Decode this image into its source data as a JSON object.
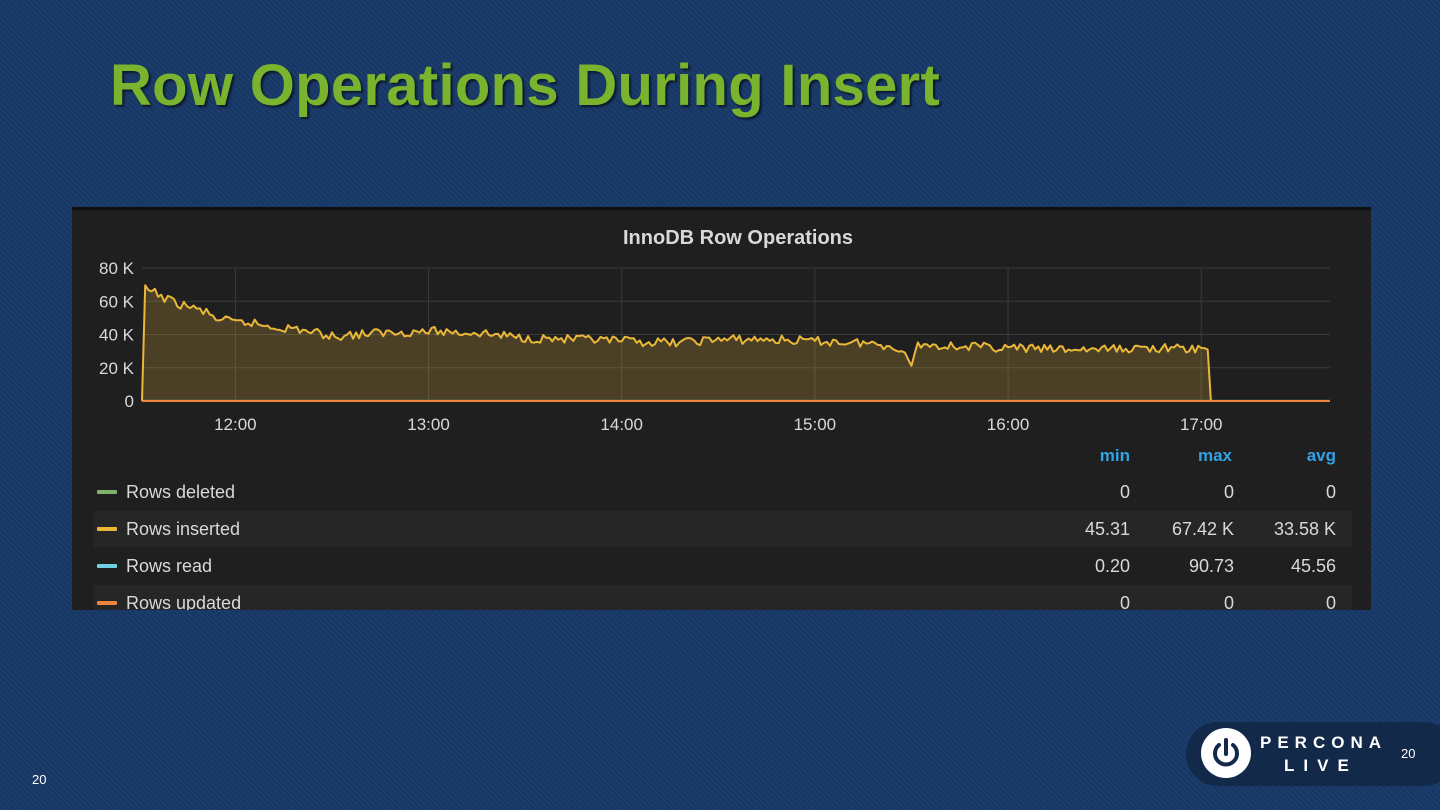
{
  "slide": {
    "title": "Row Operations During Insert",
    "page_number_left": "20",
    "page_number_right": "20",
    "brand_line1": "PERCONA",
    "brand_line2": "LIVE",
    "logo_icon": "power-icon"
  },
  "colors": {
    "title": "#7ab32e",
    "panel_bg": "#1f1f1f",
    "legend_header": "#33a2e5",
    "rows_deleted": "#7eb26d",
    "rows_inserted": "#eab839",
    "rows_read": "#6ed0e0",
    "rows_updated": "#ef843c"
  },
  "chart_data": {
    "type": "area",
    "title": "InnoDB Row Operations",
    "xlabel": "",
    "ylabel": "",
    "x_start": "11:31",
    "x_end": "17:40",
    "x_ticks": [
      "12:00",
      "13:00",
      "14:00",
      "15:00",
      "16:00",
      "17:00"
    ],
    "y_ticks": [
      "0",
      "20 K",
      "40 K",
      "60 K",
      "80 K"
    ],
    "y_tick_values": [
      0,
      20000,
      40000,
      60000,
      80000
    ],
    "ylim": [
      0,
      80000
    ],
    "grid": true,
    "legend_columns": [
      "min",
      "max",
      "avg"
    ],
    "series": [
      {
        "name": "Rows deleted",
        "color": "#7eb26d",
        "min": "0",
        "max": "0",
        "avg": "0",
        "points": [
          [
            "11:31",
            0
          ],
          [
            "17:40",
            0
          ]
        ]
      },
      {
        "name": "Rows inserted",
        "color": "#eab839",
        "min": "45.31",
        "max": "67.42 K",
        "avg": "33.58 K",
        "points": [
          [
            "11:31",
            0
          ],
          [
            "11:32",
            67000
          ],
          [
            "11:35",
            65000
          ],
          [
            "11:40",
            60000
          ],
          [
            "11:45",
            57000
          ],
          [
            "11:50",
            54000
          ],
          [
            "11:55",
            49000
          ],
          [
            "12:00",
            47000
          ],
          [
            "12:05",
            47000
          ],
          [
            "12:10",
            45000
          ],
          [
            "12:20",
            43000
          ],
          [
            "12:30",
            39000
          ],
          [
            "12:45",
            41000
          ],
          [
            "13:00",
            42000
          ],
          [
            "13:15",
            41000
          ],
          [
            "13:30",
            38000
          ],
          [
            "13:45",
            37000
          ],
          [
            "14:00",
            36000
          ],
          [
            "14:15",
            35000
          ],
          [
            "14:30",
            37000
          ],
          [
            "14:45",
            37000
          ],
          [
            "15:00",
            36000
          ],
          [
            "15:15",
            35000
          ],
          [
            "15:25",
            33000
          ],
          [
            "15:30",
            23000
          ],
          [
            "15:32",
            34000
          ],
          [
            "15:45",
            33000
          ],
          [
            "16:00",
            32000
          ],
          [
            "16:15",
            31000
          ],
          [
            "16:30",
            31000
          ],
          [
            "16:45",
            32000
          ],
          [
            "17:00",
            31000
          ],
          [
            "17:02",
            31000
          ],
          [
            "17:03",
            0
          ],
          [
            "17:40",
            0
          ]
        ]
      },
      {
        "name": "Rows read",
        "color": "#6ed0e0",
        "min": "0.20",
        "max": "90.73",
        "avg": "45.56",
        "points": [
          [
            "11:31",
            45
          ],
          [
            "17:40",
            45
          ]
        ]
      },
      {
        "name": "Rows updated",
        "color": "#ef843c",
        "min": "0",
        "max": "0",
        "avg": "0",
        "points": [
          [
            "11:31",
            0
          ],
          [
            "17:40",
            0
          ]
        ]
      }
    ]
  }
}
